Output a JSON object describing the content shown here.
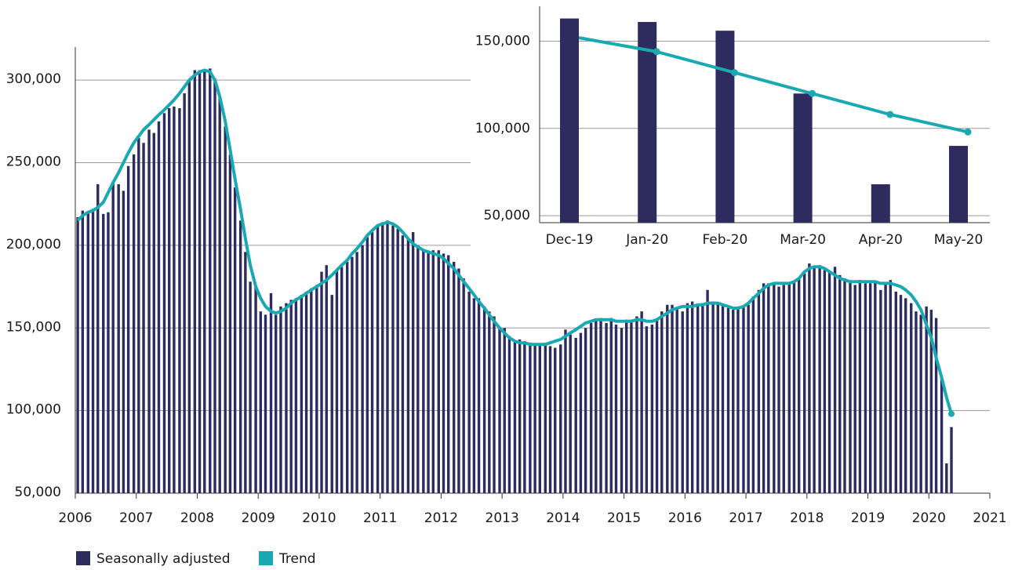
{
  "chart_data": [
    {
      "type": "bar",
      "xlim": [
        2006,
        2021
      ],
      "xticks": [
        2006,
        2007,
        2008,
        2009,
        2010,
        2011,
        2012,
        2013,
        2014,
        2015,
        2016,
        2017,
        2018,
        2019,
        2020,
        2021
      ],
      "ylim": [
        50000,
        320000
      ],
      "yticks": [
        {
          "value": 50000,
          "label": "50,000"
        },
        {
          "value": 100000,
          "label": "100,000"
        },
        {
          "value": 150000,
          "label": "150,000"
        },
        {
          "value": 200000,
          "label": "200,000"
        },
        {
          "value": 250000,
          "label": "250,000"
        },
        {
          "value": 300000,
          "label": "300,000"
        }
      ],
      "grid": true,
      "legend": "bottom",
      "x": [
        2006,
        2006.08,
        2006.17,
        2006.25,
        2006.33,
        2006.42,
        2006.5,
        2006.58,
        2006.67,
        2006.75,
        2006.83,
        2006.92,
        2007,
        2007.08,
        2007.17,
        2007.25,
        2007.33,
        2007.42,
        2007.5,
        2007.58,
        2007.67,
        2007.75,
        2007.83,
        2007.92,
        2008,
        2008.08,
        2008.17,
        2008.25,
        2008.33,
        2008.42,
        2008.5,
        2008.58,
        2008.67,
        2008.75,
        2008.83,
        2008.92,
        2009,
        2009.08,
        2009.17,
        2009.25,
        2009.33,
        2009.42,
        2009.5,
        2009.58,
        2009.67,
        2009.75,
        2009.83,
        2009.92,
        2010,
        2010.08,
        2010.17,
        2010.25,
        2010.33,
        2010.42,
        2010.5,
        2010.58,
        2010.67,
        2010.75,
        2010.83,
        2010.92,
        2011,
        2011.08,
        2011.17,
        2011.25,
        2011.33,
        2011.42,
        2011.5,
        2011.58,
        2011.67,
        2011.75,
        2011.83,
        2011.92,
        2012,
        2012.08,
        2012.17,
        2012.25,
        2012.33,
        2012.42,
        2012.5,
        2012.58,
        2012.67,
        2012.75,
        2012.83,
        2012.92,
        2013,
        2013.08,
        2013.17,
        2013.25,
        2013.33,
        2013.42,
        2013.5,
        2013.58,
        2013.67,
        2013.75,
        2013.83,
        2013.92,
        2014,
        2014.08,
        2014.17,
        2014.25,
        2014.33,
        2014.42,
        2014.5,
        2014.58,
        2014.67,
        2014.75,
        2014.83,
        2014.92,
        2015,
        2015.08,
        2015.17,
        2015.25,
        2015.33,
        2015.42,
        2015.5,
        2015.58,
        2015.67,
        2015.75,
        2015.83,
        2015.92,
        2016,
        2016.08,
        2016.17,
        2016.25,
        2016.33,
        2016.42,
        2016.5,
        2016.58,
        2016.67,
        2016.75,
        2016.83,
        2016.92,
        2017,
        2017.08,
        2017.17,
        2017.25,
        2017.33,
        2017.42,
        2017.5,
        2017.58,
        2017.67,
        2017.75,
        2017.83,
        2017.92,
        2018,
        2018.08,
        2018.17,
        2018.25,
        2018.33,
        2018.42,
        2018.5,
        2018.58,
        2018.67,
        2018.75,
        2018.83,
        2018.92,
        2019,
        2019.08,
        2019.17,
        2019.25,
        2019.33,
        2019.42,
        2019.5,
        2019.58,
        2019.67,
        2019.75,
        2019.83,
        2019.92,
        2020,
        2020.08,
        2020.17,
        2020.25,
        2020.33
      ],
      "series": [
        {
          "name": "Seasonally adjusted",
          "type": "bar",
          "color": "#2e2b5f",
          "values": [
            217000,
            221000,
            220000,
            222000,
            237000,
            219000,
            220000,
            238000,
            237000,
            233000,
            248000,
            255000,
            265000,
            262000,
            270000,
            268000,
            275000,
            280000,
            283000,
            284000,
            283000,
            292000,
            300000,
            306000,
            306000,
            306000,
            307000,
            301000,
            290000,
            272000,
            255000,
            235000,
            215000,
            196000,
            178000,
            175000,
            160000,
            158000,
            171000,
            158000,
            163000,
            165000,
            167000,
            168000,
            170000,
            172000,
            174000,
            176000,
            184000,
            188000,
            170000,
            185000,
            187000,
            190000,
            193000,
            196000,
            200000,
            205000,
            208000,
            212000,
            214000,
            215000,
            212000,
            210000,
            206000,
            204000,
            208000,
            200000,
            197000,
            196000,
            197000,
            197000,
            195000,
            194000,
            190000,
            186000,
            180000,
            172000,
            168000,
            168000,
            163000,
            160000,
            157000,
            150000,
            150000,
            145000,
            142000,
            143000,
            142000,
            141000,
            140000,
            140000,
            141000,
            139000,
            138000,
            140000,
            149000,
            146000,
            144000,
            147000,
            150000,
            153000,
            155000,
            156000,
            153000,
            156000,
            152000,
            150000,
            155000,
            155000,
            157000,
            160000,
            151000,
            152000,
            155000,
            160000,
            164000,
            164000,
            162000,
            160000,
            165000,
            166000,
            164000,
            165000,
            173000,
            166000,
            165000,
            164000,
            162000,
            161000,
            163000,
            163000,
            164000,
            169000,
            173000,
            177000,
            177000,
            177000,
            175000,
            176000,
            177000,
            178000,
            180000,
            183000,
            189000,
            187000,
            188000,
            185000,
            184000,
            187000,
            182000,
            180000,
            178000,
            176000,
            179000,
            177000,
            177000,
            178000,
            173000,
            177000,
            179000,
            172000,
            170000,
            168000,
            165000,
            160000,
            158000,
            163000,
            161000,
            156000,
            120000,
            68000,
            90000
          ]
        },
        {
          "name": "Trend",
          "type": "line",
          "color": "#1aa9b2",
          "values": [
            215000,
            218000,
            220000,
            221000,
            223000,
            226000,
            232000,
            238000,
            244000,
            250000,
            256000,
            262000,
            266000,
            270000,
            273000,
            276000,
            279000,
            282000,
            285000,
            288000,
            292000,
            296000,
            300000,
            303000,
            305000,
            306000,
            305000,
            300000,
            290000,
            275000,
            258000,
            240000,
            222000,
            204000,
            188000,
            175000,
            168000,
            163000,
            160000,
            159000,
            160000,
            162000,
            165000,
            167000,
            169000,
            171000,
            173000,
            175000,
            177000,
            179000,
            182000,
            185000,
            188000,
            191000,
            195000,
            198000,
            202000,
            206000,
            209000,
            212000,
            213000,
            214000,
            213000,
            211000,
            208000,
            204000,
            201000,
            199000,
            197000,
            196000,
            195000,
            194000,
            192000,
            189000,
            186000,
            182000,
            178000,
            174000,
            170000,
            166000,
            162000,
            158000,
            154000,
            150000,
            147000,
            144000,
            142000,
            141000,
            141000,
            140000,
            140000,
            140000,
            140000,
            141000,
            142000,
            143000,
            145000,
            147000,
            149000,
            151000,
            153000,
            154000,
            155000,
            155000,
            155000,
            155000,
            154000,
            154000,
            154000,
            154000,
            155000,
            155000,
            154000,
            154000,
            155000,
            157000,
            159000,
            161000,
            162000,
            163000,
            163000,
            163000,
            164000,
            164000,
            165000,
            165000,
            165000,
            164000,
            163000,
            162000,
            162000,
            163000,
            165000,
            168000,
            171000,
            174000,
            176000,
            177000,
            177000,
            177000,
            177000,
            178000,
            180000,
            184000,
            186000,
            187000,
            187000,
            186000,
            184000,
            182000,
            180000,
            179000,
            178000,
            178000,
            178000,
            178000,
            178000,
            178000,
            177000,
            177000,
            177000,
            176000,
            175000,
            173000,
            170000,
            166000,
            161000,
            152000,
            144000,
            132000,
            120000,
            108000,
            98000
          ]
        }
      ]
    },
    {
      "type": "bar",
      "categories": [
        "Dec-19",
        "Jan-20",
        "Feb-20",
        "Mar-20",
        "Apr-20",
        "May-20"
      ],
      "ylim": [
        46000,
        170000
      ],
      "yticks": [
        {
          "value": 50000,
          "label": "50,000"
        },
        {
          "value": 100000,
          "label": "100,000"
        },
        {
          "value": 150000,
          "label": "150,000"
        }
      ],
      "grid": true,
      "series": [
        {
          "type": "bar",
          "color": "#2e2b5f",
          "values": [
            163000,
            161000,
            156000,
            120000,
            68000,
            90000
          ]
        },
        {
          "type": "line",
          "color": "#1aa9b2",
          "values": [
            152000,
            144000,
            132000,
            120000,
            108000,
            98000
          ]
        }
      ]
    }
  ]
}
